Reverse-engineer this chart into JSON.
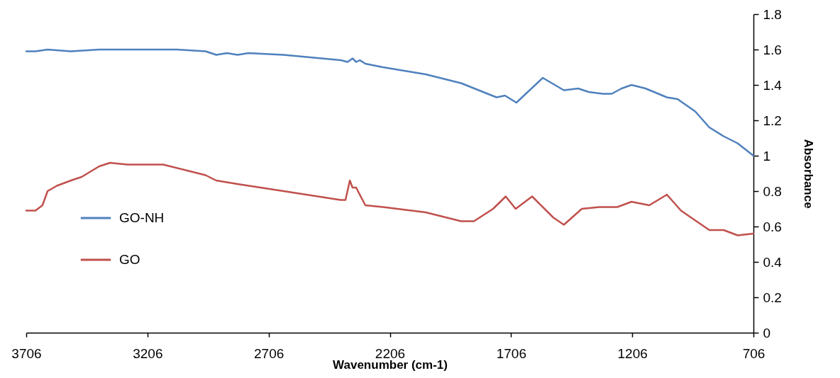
{
  "chart_data": {
    "type": "line",
    "xlabel": "Wavenumber (cm-1)",
    "ylabel": "Absorbance",
    "xlim": [
      3706,
      706
    ],
    "xticks": [
      3706,
      3206,
      2706,
      2206,
      1706,
      1206,
      706
    ],
    "ylim": [
      0,
      1.8
    ],
    "yticks": [
      0,
      0.2,
      0.4,
      0.6,
      0.8,
      1,
      1.2,
      1.4,
      1.6,
      1.8
    ],
    "grid": false,
    "legend": "left",
    "marker": "none",
    "line_style": "solid",
    "series": [
      {
        "name": "GO-NH",
        "color": "#4f81bd",
        "x": [
          3706,
          3668,
          3618,
          3522,
          3405,
          3375,
          3287,
          3083,
          2966,
          2922,
          2878,
          2834,
          2790,
          2644,
          2409,
          2380,
          2360,
          2345,
          2330,
          2307,
          2234,
          2058,
          1912,
          1766,
          1731,
          1684,
          1575,
          1488,
          1429,
          1385,
          1327,
          1291,
          1250,
          1209,
          1151,
          1063,
          1019,
          946,
          888,
          829,
          771,
          706
        ],
        "values": [
          1.59,
          1.59,
          1.6,
          1.59,
          1.6,
          1.6,
          1.6,
          1.6,
          1.59,
          1.57,
          1.58,
          1.57,
          1.58,
          1.57,
          1.54,
          1.53,
          1.55,
          1.53,
          1.54,
          1.52,
          1.5,
          1.46,
          1.41,
          1.33,
          1.34,
          1.3,
          1.44,
          1.37,
          1.38,
          1.36,
          1.35,
          1.35,
          1.38,
          1.4,
          1.38,
          1.33,
          1.32,
          1.25,
          1.16,
          1.11,
          1.07,
          1.0
        ]
      },
      {
        "name": "GO",
        "color": "#c0504d",
        "x": [
          3706,
          3668,
          3639,
          3618,
          3580,
          3522,
          3478,
          3405,
          3361,
          3287,
          3141,
          3024,
          2966,
          2922,
          2878,
          2834,
          2644,
          2409,
          2389,
          2371,
          2360,
          2345,
          2330,
          2307,
          2234,
          2058,
          1912,
          1859,
          1780,
          1728,
          1687,
          1619,
          1531,
          1488,
          1414,
          1341,
          1268,
          1209,
          1136,
          1063,
          1005,
          952,
          888,
          829,
          771,
          706
        ],
        "values": [
          0.69,
          0.69,
          0.72,
          0.8,
          0.83,
          0.86,
          0.88,
          0.94,
          0.96,
          0.95,
          0.95,
          0.91,
          0.89,
          0.86,
          0.85,
          0.84,
          0.8,
          0.75,
          0.75,
          0.86,
          0.82,
          0.82,
          0.78,
          0.72,
          0.71,
          0.68,
          0.63,
          0.63,
          0.7,
          0.77,
          0.7,
          0.77,
          0.65,
          0.61,
          0.7,
          0.71,
          0.71,
          0.74,
          0.72,
          0.78,
          0.69,
          0.64,
          0.58,
          0.58,
          0.55,
          0.56
        ]
      }
    ]
  }
}
